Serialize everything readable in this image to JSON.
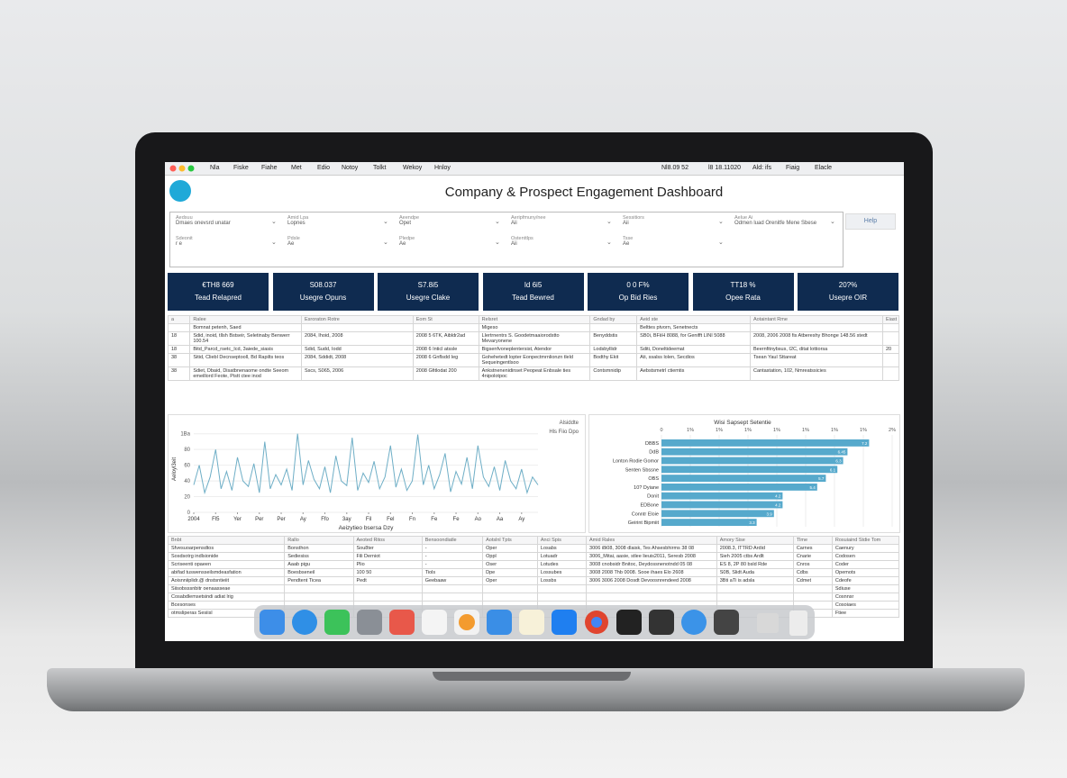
{
  "menu_bar": {
    "items": [
      "Nla",
      "Fiske",
      "Fiahe",
      "Met",
      "Edio",
      "Notoy",
      "Tolkt",
      "Wekoy",
      "Hnloy"
    ],
    "status": [
      "Nl8.09 52",
      "l8 18.11020",
      "Ald: ifs",
      "Fiaig",
      "Elacle"
    ]
  },
  "header": {
    "title": "Company & Prospect Engagement Dashboard"
  },
  "filters": [
    {
      "label": "Aedsuu",
      "value": "Dmaes onevsrd unatar"
    },
    {
      "label": "Amid Lpa",
      "value": "Lopnes"
    },
    {
      "label": "Aeendpe",
      "value": "Opet"
    },
    {
      "label": "Aeripfmuny/nee",
      "value": "Aii"
    },
    {
      "label": "Sessitiors",
      "value": "Aii"
    },
    {
      "label": "Aelue Ai",
      "value": "Odmen luad Orenitfe Mene Sbese"
    },
    {
      "label": "Sdeonit",
      "value": "r e"
    },
    {
      "label": "Pdsle",
      "value": "Ae"
    },
    {
      "label": "Pledpe",
      "value": "Ae"
    },
    {
      "label": "Ostenttlps",
      "value": "Aii"
    },
    {
      "label": "Tsse",
      "value": "Ae"
    }
  ],
  "help_button": "Help",
  "kpis": [
    {
      "value": "€TH8 669",
      "label": "Tead Relapred"
    },
    {
      "value": "S08.037",
      "label": "Usegre Opuns"
    },
    {
      "value": "S7.8i5",
      "label": "Usegre Clake"
    },
    {
      "value": "Id 6i5",
      "label": "Tead Bewred"
    },
    {
      "value": "0 0 F%",
      "label": "Op Bid Ries"
    },
    {
      "value": "TT18 %",
      "label": "Opee Rata"
    },
    {
      "value": "20?%",
      "label": "Usepre OIR"
    }
  ],
  "top_table": {
    "headers": [
      "a",
      "Ralee",
      "Esroraton Rotre",
      "Eom St",
      "Relsret",
      "Gndad by",
      "Aeid ste",
      "Aotaintant Rme",
      "Eiast"
    ],
    "rows": [
      [
        "",
        "Bomnat petenh, Saed",
        "",
        "",
        "Migeso",
        "",
        "Belttes ptvorn, Senetnects",
        "",
        ""
      ],
      [
        "18",
        "Sdid, inoid, tllsh Bstseir, Seletinaby Benwerr 100.54",
        "2084, Ihoid, 2008",
        "2008 5 6TK, Aibldr2ad",
        "Llertrnentrs S. Goodetmaaiorodstto Mevaryonene",
        "Benyddstis",
        "SB0i, BFiiH 8088, for Genifft LINI 5088",
        "2008, 2006 2008 fis Atbereshy Bhonge 148.56 stedt",
        ""
      ],
      [
        "18",
        "Bitd_Parcd_rsetc_Icd, 3aiede_siasis",
        "Sdid, Sudd, Iodd",
        "2008 6 Inticl atssle",
        "Bigsenfvoneplentersist, Atendor",
        "Lodsbyllidr",
        "Sditi, Doneltideemat",
        "Beernfitnybsus, I2C, ditat lottiorsa",
        "20"
      ],
      [
        "38",
        "Sitid, Cliebl Decnseptooll, Bd Rapilts teos",
        "2084, Sddidt, 2008",
        "2008 6 Gnflsdd Ieg",
        "Gohehetedt lopter Eonpectmrnlionzn tleld Sequeingentlsoo",
        "Bodthy Ekit",
        "Ati, ssalss lolen, Secdios",
        "Tsean Yaul Sttareat",
        ""
      ],
      [
        "38",
        "Sdiet, Dbaid, Disatbnenaome ondte Seeom emeillord Feote, Pistt ctee inod",
        "Sscs, S065, 2006",
        "2008 Gfitlodat 200",
        "Ankstnenenidinset Peopeat Enbsale ties 4nipolotpoc",
        "Contsmnidip",
        "Aebstsmetrl ctiemtis",
        "Cantastation, 102, Nmreatssicies",
        ""
      ]
    ]
  },
  "chart_data": [
    {
      "type": "line",
      "y_label": "Aeloyl3eit",
      "x_label": "Aeizytieo bsersa Dzy",
      "legend": [
        "Alsiddte",
        "Hls Fiio Dpo"
      ],
      "series": [
        {
          "name": "Hls Fiio Dpo",
          "color": "#6eaec6",
          "x": [
            0,
            1,
            2,
            3,
            4,
            5,
            6,
            7,
            8,
            9,
            10,
            11,
            12,
            13,
            14,
            15,
            16,
            17,
            18,
            19,
            20,
            21,
            22,
            23,
            24,
            25,
            26,
            27,
            28,
            29,
            30,
            31,
            32,
            33,
            34,
            35,
            36,
            37,
            38,
            39,
            40,
            41,
            42,
            43,
            44,
            45,
            46,
            47,
            48,
            49,
            50,
            51,
            52,
            53,
            54,
            55,
            56,
            57,
            58,
            59,
            60,
            61,
            62,
            63
          ],
          "values": [
            35,
            60,
            25,
            45,
            80,
            30,
            52,
            28,
            70,
            40,
            33,
            62,
            25,
            90,
            30,
            48,
            35,
            55,
            28,
            100,
            35,
            66,
            42,
            30,
            58,
            25,
            72,
            40,
            34,
            95,
            28,
            50,
            38,
            65,
            30,
            45,
            85,
            32,
            55,
            28,
            40,
            99,
            35,
            60,
            30,
            48,
            75,
            26,
            52,
            36,
            70,
            30,
            85,
            45,
            33,
            58,
            28,
            66,
            40,
            30,
            55,
            25,
            45,
            35
          ]
        }
      ],
      "xlim": [
        0,
        63
      ],
      "ylim": [
        0,
        110
      ],
      "xticks": [
        {
          "value": 0,
          "label": "2004"
        },
        {
          "value": 4,
          "label": "Fl5"
        },
        {
          "value": 8,
          "label": "Yer"
        },
        {
          "value": 12,
          "label": "Per"
        },
        {
          "value": 16,
          "label": "Per"
        },
        {
          "value": 20,
          "label": "Ay"
        },
        {
          "value": 24,
          "label": "Ffo"
        },
        {
          "value": 28,
          "label": "3ay"
        },
        {
          "value": 32,
          "label": "Fil"
        },
        {
          "value": 36,
          "label": "Fel"
        },
        {
          "value": 40,
          "label": "Fn"
        },
        {
          "value": 44,
          "label": "Fe"
        },
        {
          "value": 48,
          "label": "Fe"
        },
        {
          "value": 52,
          "label": "Ao"
        },
        {
          "value": 56,
          "label": "Aa"
        },
        {
          "value": 60,
          "label": "Ay"
        }
      ],
      "yticks": [
        0,
        20,
        40,
        60,
        80,
        {
          "value": 100,
          "label": "1Ba"
        }
      ],
      "grid": true
    },
    {
      "type": "bar",
      "orientation": "horizontal",
      "title": "Wisi Sapsept Setentie",
      "color": "#56a9cc",
      "categories": [
        "DBBS",
        "DdB",
        "Lonton Rodie Gomor",
        "Senten Sbssne",
        "OBS",
        "10? Dyiane",
        "Donit",
        "EDBone",
        "Conntr Eloie",
        "Geirint Bipmiit"
      ],
      "values": [
        7.2,
        6.45,
        6.3,
        6.1,
        5.7,
        5.4,
        4.2,
        4.2,
        3.9,
        3.3
      ],
      "value_labels": [
        "7.2",
        "6.45",
        "6.3",
        "6.1",
        "5.7",
        "5.4",
        "4.2",
        "4.2",
        "3.9",
        "3.3"
      ],
      "xlim": [
        0,
        8
      ],
      "xticks": [
        0,
        {
          "value": 1,
          "label": "1%"
        },
        {
          "value": 2,
          "label": "1%"
        },
        {
          "value": 3,
          "label": "1%"
        },
        {
          "value": 4,
          "label": "1%"
        },
        {
          "value": 5,
          "label": "1%"
        },
        {
          "value": 6,
          "label": "1%"
        },
        {
          "value": 7,
          "label": "1%"
        },
        {
          "value": 8,
          "label": "2%"
        }
      ],
      "grid": true
    }
  ],
  "bottom_table": {
    "headers": [
      "Bnbt",
      "Rallo",
      "Aeoted Ritos",
      "Bensoondiatle",
      "Aotslnl Tpts",
      "Anci Spis",
      "Amid Rales",
      "Amory Sise",
      "Tlme",
      "Rosuiaind Stdie Tom"
    ],
    "rows": [
      [
        "Sfvesuoarpensdtos",
        "Bonsthon",
        "Sou8ter",
        "-",
        "Oper",
        "Losabs",
        "3006 i8i08, 3008 dlaisk, Tes Ahsesbhirms 38 08",
        "2008.3, ITTRD Ardid",
        "Carnes",
        "Caenury"
      ],
      [
        "Sosdsotrg indlsionide",
        "Sediesiss",
        "Fili Derniot",
        "-",
        "Oppl",
        "Lotuadr",
        "3006_Mitai, aasie, stlee lieuis2011, Seresb 2008",
        "Sieh 2005 ctbs Ardlt",
        "Cnarie",
        "Codosen"
      ],
      [
        "Scriseenti opaeen",
        "Aaab pigu",
        "Plio",
        "-",
        "Oser",
        "Lotudes",
        "3008 cnobsidr Bnitoc, Deydossnenotndd 05 08",
        "ES 8, 2P 80 bsld Rde",
        "Cnros",
        "Coder"
      ],
      [
        "abifad tuswensseilsmdeasfation",
        "Boesbseneil",
        "100 50",
        "Tiols",
        "Dpe",
        "Lossubes",
        "3008 2008 Thb 0008. Sooe ihaes Elo 2608",
        "S0B, Slidt Auda",
        "Cdbs",
        "Opemots"
      ],
      [
        "Aoisnniiplidr.@ dnstsntieiit",
        "Pendtent Ticea",
        "Pedt",
        "Geebaaw",
        "Oper",
        "Lossbs",
        "3006 3006 2008 Dosdt Devoosnrendeed 2008",
        "3Bti aTi is adsla",
        "Cdmet",
        "Cdeofe"
      ],
      [
        "Siisobsssnbitr oenaasseae",
        "",
        "",
        "",
        "",
        "",
        "",
        "",
        "",
        "Sdiuse"
      ],
      [
        "Cosabdlemsetsindi adiat lrig",
        "",
        "",
        "",
        "",
        "",
        "",
        "",
        "",
        "Cosnnsr"
      ],
      [
        "Bcesonses",
        "",
        "",
        "",
        "",
        "",
        "",
        "",
        "",
        "Cosoiaes"
      ],
      [
        "otmsliperas Sesiisl",
        "",
        "",
        "",
        "",
        "",
        "",
        "",
        "",
        "Ftiee"
      ]
    ]
  }
}
